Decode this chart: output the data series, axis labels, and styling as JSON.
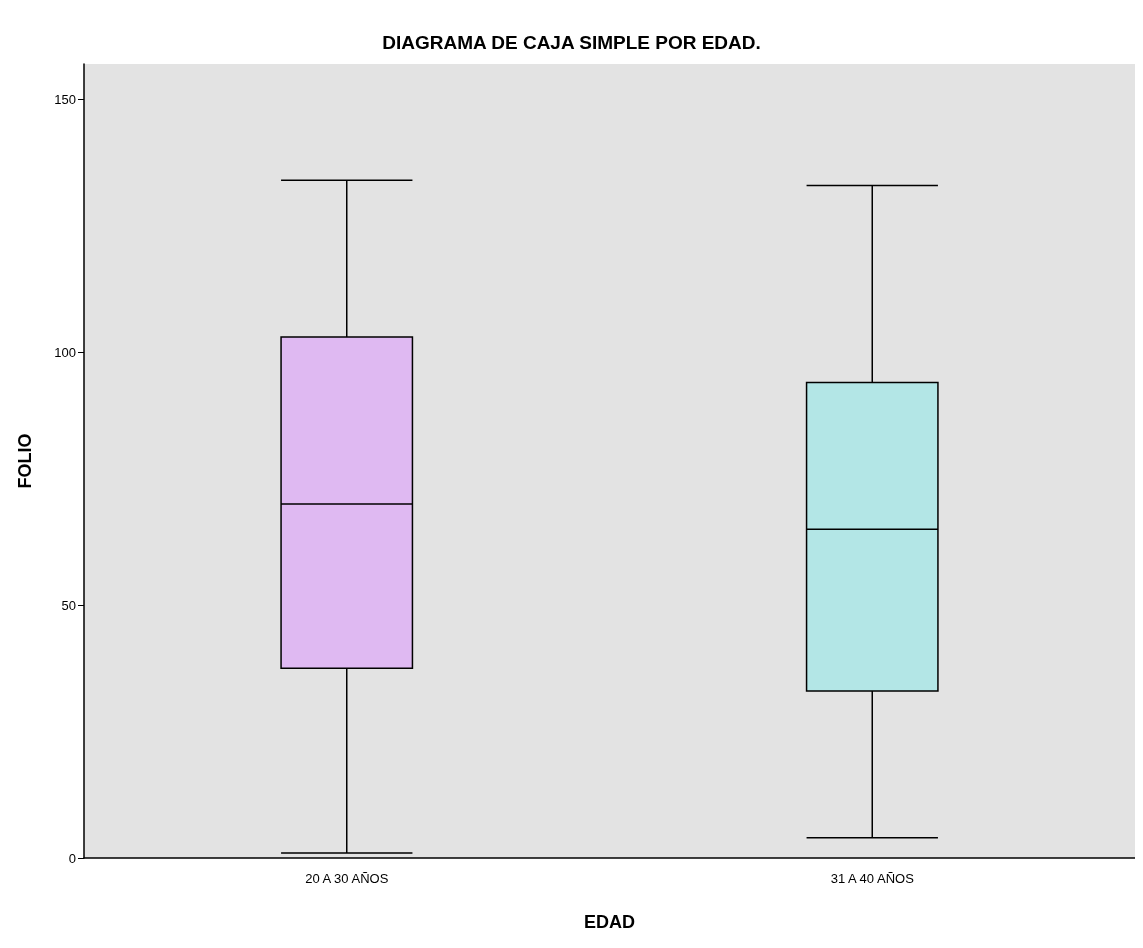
{
  "chart_data": {
    "type": "box",
    "title": "DIAGRAMA DE CAJA SIMPLE POR EDAD.",
    "xlabel": "EDAD",
    "ylabel": "FOLIO",
    "categories": [
      "20 A 30 AÑOS",
      "31 A 40 AÑOS"
    ],
    "colors": [
      "#dfb9f2",
      "#b3e6e6"
    ],
    "boxes": [
      {
        "low": 1,
        "q1": 37.5,
        "median": 70,
        "q3": 103,
        "high": 134
      },
      {
        "low": 4,
        "q1": 33,
        "median": 65,
        "q3": 94,
        "high": 133
      }
    ],
    "ylim": [
      0,
      157
    ],
    "yticks": [
      0,
      50,
      100,
      150
    ],
    "grid": false
  }
}
